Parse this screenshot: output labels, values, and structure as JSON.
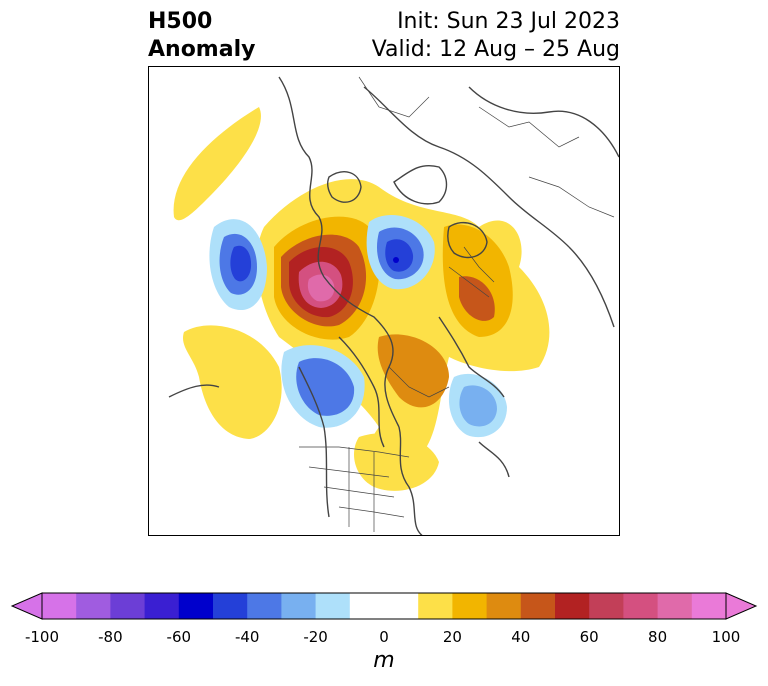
{
  "title": {
    "left_line1": "H500",
    "left_line2": "Anomaly",
    "right_line1": "Init: Sun 23 Jul 2023",
    "right_line2": "Valid: 12 Aug – 25 Aug"
  },
  "colorbar": {
    "unit": "m",
    "ticks": [
      "-100",
      "-80",
      "-60",
      "-40",
      "-20",
      "0",
      "20",
      "40",
      "60",
      "80",
      "100"
    ],
    "colors": [
      "#d672e8",
      "#a05ce0",
      "#6c3ed6",
      "#3a1fd2",
      "#0000cc",
      "#2440d8",
      "#4d78e6",
      "#78b0f0",
      "#aee0fa",
      "#ffffff",
      "#ffffff",
      "#fde048",
      "#f2b500",
      "#de8b10",
      "#c6561a",
      "#b22222",
      "#c23f58",
      "#d45080",
      "#e06aaa",
      "#ea7ad8"
    ],
    "under_color": "#d672e8",
    "over_color": "#ea7ad8"
  },
  "map": {
    "features": {
      "ridge_main": "positive anomaly over Alaska/Bering Sea",
      "trough_main": "negative anomaly over Eurasian Arctic"
    }
  }
}
